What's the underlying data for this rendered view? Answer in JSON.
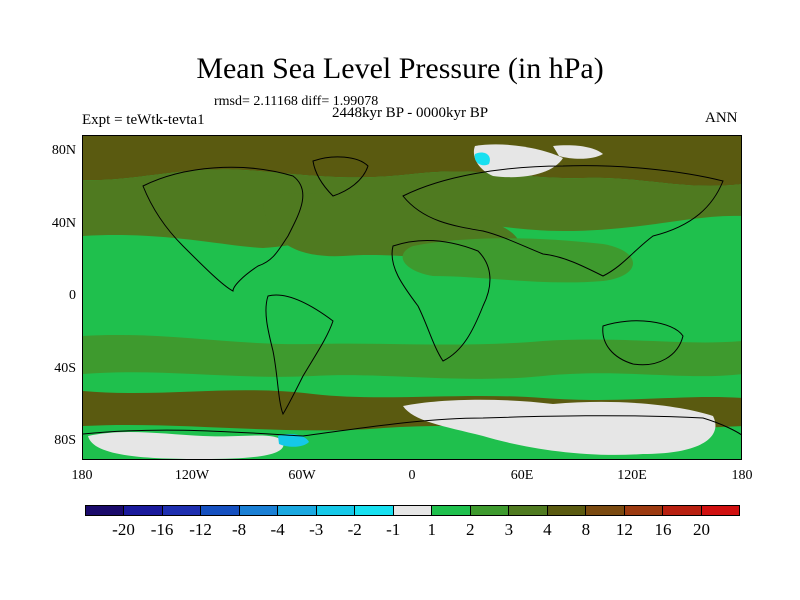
{
  "title": "Mean Sea Level Pressure (in hPa)",
  "stats": "rmsd= 2.11168 diff= 1.99078",
  "subtitle": "2448kyr BP - 0000kyr BP",
  "experiment": "Expt = teWtk-tevta1",
  "season": "ANN",
  "map": {
    "projection": "cylindrical equidistant",
    "lon_range": [
      -180,
      180
    ],
    "lat_range": [
      -90,
      90
    ],
    "y_ticks": [
      {
        "lat": 80,
        "label": "80N"
      },
      {
        "lat": 40,
        "label": "40N"
      },
      {
        "lat": 0,
        "label": "0"
      },
      {
        "lat": -40,
        "label": "40S"
      },
      {
        "lat": -80,
        "label": "80S"
      }
    ],
    "x_ticks": [
      {
        "lon": -180,
        "label": "180"
      },
      {
        "lon": -120,
        "label": "120W"
      },
      {
        "lon": -60,
        "label": "60W"
      },
      {
        "lon": 0,
        "label": "0"
      },
      {
        "lon": 60,
        "label": "60E"
      },
      {
        "lon": 120,
        "label": "120E"
      },
      {
        "lon": 180,
        "label": "180"
      }
    ]
  },
  "colorbar": {
    "colors": [
      "#1a0a6b",
      "#1a1a9c",
      "#1e2fb0",
      "#1550c0",
      "#1a7fd4",
      "#1aa8e0",
      "#15c8e8",
      "#18e0f0",
      "#e6e6e6",
      "#1fc04d",
      "#3e9a2e",
      "#4f7a20",
      "#5a5a10",
      "#7a4a10",
      "#9c3a10",
      "#b82010",
      "#d01010"
    ],
    "labels": [
      "-20",
      "-16",
      "-12",
      "-8",
      "-4",
      "-3",
      "-2",
      "-1",
      "1",
      "2",
      "3",
      "4",
      "8",
      "12",
      "16",
      "20"
    ]
  }
}
